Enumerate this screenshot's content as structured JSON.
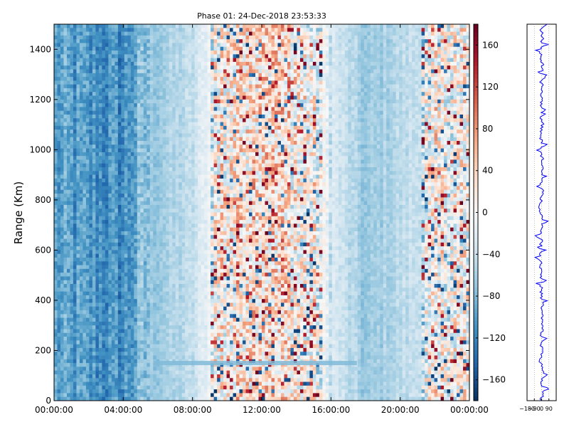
{
  "colors": {
    "colormap": [
      "#053061",
      "#2166ac",
      "#4393c3",
      "#92c5de",
      "#d1e5f0",
      "#f7f7f7",
      "#fddbc7",
      "#f4a582",
      "#d6604d",
      "#b2182b",
      "#67001f"
    ],
    "profile_line": "#0000ff",
    "axes": "#000000"
  },
  "chart_data": [
    {
      "type": "heatmap",
      "title": "Phase 01: 24-Dec-2018 23:53:33",
      "xlabel": "",
      "ylabel": "Range (Km)",
      "x_range": [
        "00:00:00",
        "00:00:00"
      ],
      "xticks": [
        "00:00:00",
        "04:00:00",
        "08:00:00",
        "12:00:00",
        "16:00:00",
        "20:00:00",
        "00:00:00"
      ],
      "ylim": [
        0,
        1500
      ],
      "yticks": [
        0,
        200,
        400,
        600,
        800,
        1000,
        1200,
        1400
      ],
      "value_range": [
        -180,
        180
      ],
      "colorbar_ticks": [
        -160,
        -120,
        -80,
        -40,
        0,
        40,
        80,
        120,
        160
      ],
      "column_means_by_hour": [
        {
          "time": "00:00",
          "phase": -100
        },
        {
          "time": "04:00",
          "phase": -115
        },
        {
          "time": "05:30",
          "phase": -70
        },
        {
          "time": "08:00",
          "phase": -45
        },
        {
          "time": "09:30",
          "phase": 10
        },
        {
          "time": "12:00",
          "phase": 40
        },
        {
          "time": "14:00",
          "phase": 15
        },
        {
          "time": "16:00",
          "phase": -25
        },
        {
          "time": "18:00",
          "phase": -70
        },
        {
          "time": "21:00",
          "phase": -40
        },
        {
          "time": "22:00",
          "phase": 0
        }
      ],
      "features": [
        {
          "label": "",
          "range_km": 150,
          "time_span": [
            "05:45",
            "17:30"
          ],
          "phase": -80
        }
      ]
    },
    {
      "type": "line",
      "title": "",
      "xlabel": "",
      "ylabel": "",
      "xlim": [
        -180,
        180
      ],
      "xtick_labels": [
        "−180",
        "−90",
        "0",
        "90"
      ],
      "ylim": [
        0,
        1500
      ],
      "profile_center": 0,
      "profile_spread": 90
    }
  ]
}
